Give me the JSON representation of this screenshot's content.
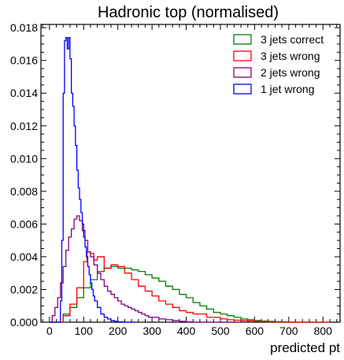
{
  "chart_data": {
    "type": "histogram",
    "title": "Hadronic top (normalised)",
    "xlabel": "predicted pt",
    "ylabel": "",
    "xlim": [
      -25,
      850
    ],
    "ylim": [
      0,
      0.0182
    ],
    "x_ticks": [
      "0",
      "100",
      "200",
      "300",
      "400",
      "500",
      "600",
      "700",
      "800"
    ],
    "y_ticks": [
      "0.000",
      "0.002",
      "0.004",
      "0.006",
      "0.008",
      "0.010",
      "0.012",
      "0.014",
      "0.016",
      "0.018"
    ],
    "legend_placement": "top-right",
    "series": [
      {
        "name": "3 jets correct",
        "color": "#008000",
        "points": [
          [
            0,
            0
          ],
          [
            30,
            0
          ],
          [
            40,
            0.0005
          ],
          [
            60,
            0.0009
          ],
          [
            80,
            0.0015
          ],
          [
            100,
            0.0021
          ],
          [
            120,
            0.0026
          ],
          [
            140,
            0.0031
          ],
          [
            160,
            0.0033
          ],
          [
            180,
            0.0034
          ],
          [
            200,
            0.0033
          ],
          [
            220,
            0.0033
          ],
          [
            240,
            0.0032
          ],
          [
            260,
            0.0031
          ],
          [
            280,
            0.0029
          ],
          [
            300,
            0.0027
          ],
          [
            320,
            0.0025
          ],
          [
            340,
            0.0022
          ],
          [
            360,
            0.002
          ],
          [
            380,
            0.0017
          ],
          [
            400,
            0.0015
          ],
          [
            420,
            0.0012
          ],
          [
            440,
            0.001
          ],
          [
            460,
            0.0008
          ],
          [
            480,
            0.0006
          ],
          [
            500,
            0.0005
          ],
          [
            520,
            0.0004
          ],
          [
            540,
            0.0003
          ],
          [
            560,
            0.0002
          ],
          [
            580,
            0.00015
          ],
          [
            600,
            0.0001
          ],
          [
            620,
            7e-05
          ],
          [
            640,
            5e-05
          ],
          [
            660,
            3e-05
          ],
          [
            680,
            2e-05
          ],
          [
            700,
            1e-05
          ],
          [
            720,
            0.0
          ],
          [
            800,
            0.0
          ]
        ]
      },
      {
        "name": "3 jets wrong",
        "color": "#ff0000",
        "points": [
          [
            0,
            0
          ],
          [
            30,
            0
          ],
          [
            40,
            0.0004
          ],
          [
            60,
            0.0011
          ],
          [
            80,
            0.0021
          ],
          [
            100,
            0.0037
          ],
          [
            110,
            0.0043
          ],
          [
            120,
            0.0042
          ],
          [
            130,
            0.0038
          ],
          [
            140,
            0.004
          ],
          [
            160,
            0.0033
          ],
          [
            180,
            0.0035
          ],
          [
            200,
            0.0034
          ],
          [
            220,
            0.003
          ],
          [
            240,
            0.0026
          ],
          [
            260,
            0.0022
          ],
          [
            280,
            0.0019
          ],
          [
            300,
            0.0016
          ],
          [
            320,
            0.0013
          ],
          [
            340,
            0.0011
          ],
          [
            360,
            0.0009
          ],
          [
            380,
            0.0007
          ],
          [
            400,
            0.0006
          ],
          [
            420,
            0.0005
          ],
          [
            440,
            0.0005
          ],
          [
            460,
            0.0003
          ],
          [
            480,
            0.0003
          ],
          [
            500,
            0.0002
          ],
          [
            520,
            0.00015
          ],
          [
            540,
            0.00012
          ],
          [
            560,
            0.0001
          ],
          [
            580,
            8e-05
          ],
          [
            600,
            6e-05
          ],
          [
            620,
            4e-05
          ],
          [
            640,
            3e-05
          ],
          [
            660,
            2e-05
          ],
          [
            680,
            0.0
          ],
          [
            820,
            0.0
          ]
        ]
      },
      {
        "name": "2 jets wrong",
        "color": "#800080",
        "points": [
          [
            0,
            0
          ],
          [
            8,
            0.0004
          ],
          [
            16,
            0.0009
          ],
          [
            24,
            0.0015
          ],
          [
            32,
            0.0024
          ],
          [
            40,
            0.0034
          ],
          [
            48,
            0.0044
          ],
          [
            56,
            0.0052
          ],
          [
            64,
            0.0057
          ],
          [
            72,
            0.0063
          ],
          [
            80,
            0.0065
          ],
          [
            88,
            0.0062
          ],
          [
            96,
            0.0056
          ],
          [
            104,
            0.005
          ],
          [
            112,
            0.0043
          ],
          [
            120,
            0.004
          ],
          [
            130,
            0.0035
          ],
          [
            140,
            0.003
          ],
          [
            150,
            0.0026
          ],
          [
            160,
            0.0022
          ],
          [
            170,
            0.0019
          ],
          [
            180,
            0.0017
          ],
          [
            190,
            0.0015
          ],
          [
            200,
            0.0013
          ],
          [
            210,
            0.0011
          ],
          [
            220,
            0.001
          ],
          [
            230,
            0.0009
          ],
          [
            240,
            0.0008
          ],
          [
            250,
            0.0007
          ],
          [
            260,
            0.0006
          ],
          [
            270,
            0.0005
          ],
          [
            280,
            0.0004
          ],
          [
            290,
            0.0003
          ],
          [
            300,
            0.0003
          ],
          [
            320,
            0.0002
          ],
          [
            340,
            0.00015
          ],
          [
            360,
            0.0001
          ],
          [
            380,
            5e-05
          ],
          [
            400,
            2e-05
          ],
          [
            420,
            0.0
          ],
          [
            560,
            0.0
          ]
        ]
      },
      {
        "name": "1 jet wrong",
        "color": "#0000ff",
        "points": [
          [
            0,
            0
          ],
          [
            28,
            0
          ],
          [
            32,
            0.0013
          ],
          [
            36,
            0.005
          ],
          [
            40,
            0.014
          ],
          [
            44,
            0.0172
          ],
          [
            48,
            0.0174
          ],
          [
            52,
            0.0167
          ],
          [
            56,
            0.0174
          ],
          [
            60,
            0.0161
          ],
          [
            64,
            0.014
          ],
          [
            68,
            0.0132
          ],
          [
            72,
            0.012
          ],
          [
            76,
            0.0108
          ],
          [
            80,
            0.0093
          ],
          [
            84,
            0.0082
          ],
          [
            88,
            0.0075
          ],
          [
            92,
            0.0067
          ],
          [
            96,
            0.006
          ],
          [
            100,
            0.0052
          ],
          [
            104,
            0.0046
          ],
          [
            108,
            0.004
          ],
          [
            112,
            0.0034
          ],
          [
            116,
            0.0029
          ],
          [
            120,
            0.0024
          ],
          [
            124,
            0.002
          ],
          [
            128,
            0.0016
          ],
          [
            132,
            0.0013
          ],
          [
            140,
            0.0009
          ],
          [
            150,
            0.0005
          ],
          [
            160,
            0.0003
          ],
          [
            170,
            0.0002
          ],
          [
            180,
            0.0001
          ],
          [
            190,
            5e-05
          ],
          [
            200,
            2e-05
          ],
          [
            220,
            0.0
          ],
          [
            250,
            0.0
          ]
        ]
      }
    ]
  }
}
